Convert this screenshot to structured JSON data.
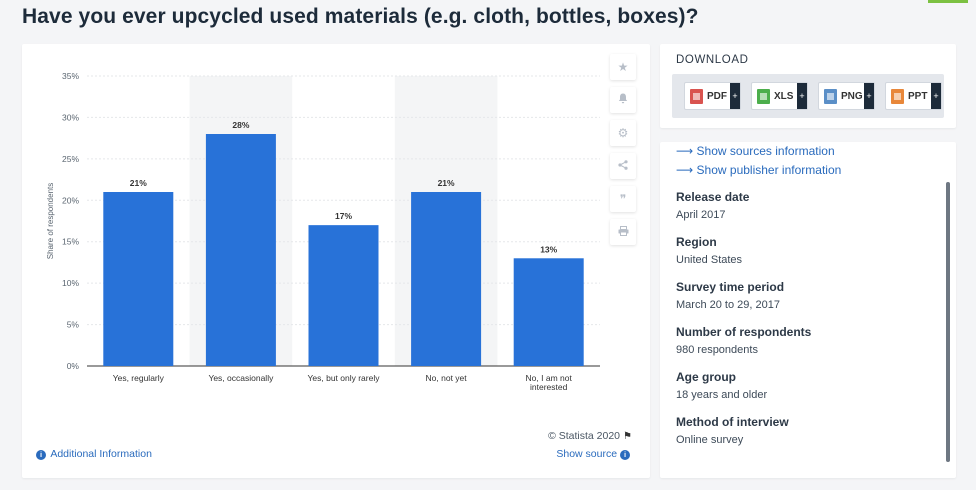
{
  "page": {
    "title": "Have you ever upcycled used materials (e.g. cloth, bottles, boxes)?"
  },
  "toolbar": {
    "icons": [
      "star-icon",
      "bell-icon",
      "gear-icon",
      "share-icon",
      "quote-icon",
      "print-icon"
    ],
    "glyphs": [
      "★",
      "🔔",
      "⚙",
      "⋖",
      "❞",
      "⎙"
    ]
  },
  "chart_data": {
    "type": "bar",
    "title": "Have you ever upcycled used materials (e.g. cloth, bottles, boxes)?",
    "categories": [
      "Yes, regularly",
      "Yes, occasionally",
      "Yes, but only rarely",
      "No, not yet",
      "No, I am not interested"
    ],
    "category_lines": [
      [
        "Yes, regularly"
      ],
      [
        "Yes, occasionally"
      ],
      [
        "Yes, but only rarely"
      ],
      [
        "No, not yet"
      ],
      [
        "No, I am not",
        "interested"
      ]
    ],
    "values": [
      21,
      28,
      17,
      21,
      13
    ],
    "value_labels": [
      "21%",
      "28%",
      "17%",
      "21%",
      "13%"
    ],
    "ylabel": "Share of respondents",
    "xlabel": "",
    "ylim": [
      0,
      35
    ],
    "yticks": [
      0,
      5,
      10,
      15,
      20,
      25,
      30,
      35
    ],
    "ytick_labels": [
      "0%",
      "5%",
      "10%",
      "15%",
      "20%",
      "25%",
      "30%",
      "35%"
    ],
    "bar_color": "#2872d8",
    "band_color": "#f4f5f6",
    "grid": true
  },
  "chart_footer": {
    "copyright": "© Statista 2020",
    "additional_info": "Additional Information",
    "show_source": "Show source"
  },
  "download": {
    "title": "DOWNLOAD",
    "buttons": [
      {
        "label": "PDF",
        "color": "#d9534f"
      },
      {
        "label": "XLS",
        "color": "#4cae4c"
      },
      {
        "label": "PNG",
        "color": "#5b8fc7"
      },
      {
        "label": "PPT",
        "color": "#e8873a"
      }
    ]
  },
  "details": {
    "links": [
      "Show sources information",
      "Show publisher information"
    ],
    "items": [
      {
        "label": "Release date",
        "value": "April 2017"
      },
      {
        "label": "Region",
        "value": "United States"
      },
      {
        "label": "Survey time period",
        "value": "March 20 to 29, 2017"
      },
      {
        "label": "Number of respondents",
        "value": "980 respondents"
      },
      {
        "label": "Age group",
        "value": "18 years and older"
      },
      {
        "label": "Method of interview",
        "value": "Online survey"
      }
    ]
  }
}
